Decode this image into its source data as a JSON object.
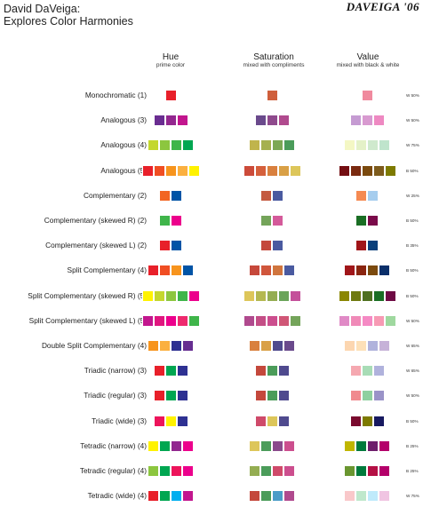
{
  "title_line1": "David DaVeiga:",
  "title_line2": "Explores Color Harmonies",
  "logo": "DAVEIGA '06",
  "columns": [
    {
      "heading": "Hue",
      "sub": "prime color"
    },
    {
      "heading": "Saturation",
      "sub": "mixed with compliments"
    },
    {
      "heading": "Value",
      "sub": "mixed with black & white"
    }
  ],
  "rows": [
    {
      "label": "Monochromatic (1)",
      "note": "W 50%",
      "hue": [
        "#e8202a"
      ],
      "sat": [
        "#cf5f3c"
      ],
      "val": [
        "#f08a9e"
      ]
    },
    {
      "label": "Analogous (3)",
      "note": "W 50%",
      "hue": [
        "#6a2d91",
        "#93278f",
        "#c2168e"
      ],
      "sat": [
        "#6a4a8c",
        "#8f4a8d",
        "#b04a8e"
      ],
      "val": [
        "#c59bd2",
        "#d89ad0",
        "#ee89c2"
      ]
    },
    {
      "label": "Analogous (4)",
      "note": "W 75%",
      "hue": [
        "#c4d72e",
        "#8cc63f",
        "#3fb54a",
        "#00a651"
      ],
      "sat": [
        "#c0b44c",
        "#a5b050",
        "#7ca855",
        "#4b9c5a"
      ],
      "val": [
        "#f4f7c4",
        "#e4f1c8",
        "#cfe9cd",
        "#bfe4cc"
      ]
    },
    {
      "label": "Analogous (5)",
      "note": "B 50%",
      "hue": [
        "#e8202a",
        "#f04e23",
        "#f7941d",
        "#fbb040",
        "#fff200"
      ],
      "sat": [
        "#cc4b3a",
        "#d5603c",
        "#d9803e",
        "#d9a046",
        "#ddc65a"
      ],
      "val": [
        "#740e12",
        "#7a2a10",
        "#7b4a0e",
        "#7d5b1c",
        "#7d7a00"
      ]
    },
    {
      "label": "Complementary (2)",
      "note": "W 25%",
      "hue": [
        "#f26522",
        "#0054a6"
      ],
      "sat": [
        "#c45a40",
        "#4a5aa0"
      ],
      "val": [
        "#f58a52",
        "#a6cdee"
      ]
    },
    {
      "label": "Complementary (skewed R) (2)",
      "note": "B 50%",
      "hue": [
        "#3fb54a",
        "#ec008c"
      ],
      "sat": [
        "#74a45a",
        "#d45a9a"
      ],
      "val": [
        "#1a6e24",
        "#7a0a4a"
      ]
    },
    {
      "label": "Complementary (skewed L) (2)",
      "note": "B 35%",
      "hue": [
        "#e8202a",
        "#0054a6"
      ],
      "sat": [
        "#c4483c",
        "#4a5aa0"
      ],
      "val": [
        "#a01418",
        "#0a3f7a"
      ]
    },
    {
      "label": "Split Complementary (4)",
      "note": "B 50%",
      "hue": [
        "#e8202a",
        "#f04e23",
        "#f7941d",
        "#0054a6"
      ],
      "sat": [
        "#c6483b",
        "#d0563c",
        "#d0753e",
        "#4a5aa0"
      ],
      "val": [
        "#a0161a",
        "#8a2510",
        "#7b4a0e",
        "#0a2f6a"
      ]
    },
    {
      "label": "Split Complementary (skewed R) (5)",
      "note": "B 50%",
      "hue": [
        "#fff200",
        "#c4d72e",
        "#8cc63f",
        "#3fb54a",
        "#ec008c"
      ],
      "sat": [
        "#ddc65a",
        "#b4b850",
        "#94ad52",
        "#6aa45a",
        "#c4509a"
      ],
      "val": [
        "#8a8600",
        "#6f7a10",
        "#4f7020",
        "#1a6e24",
        "#6e0a44"
      ]
    },
    {
      "label": "Split Complementary (skewed L) (5)",
      "note": "W 50%",
      "hue": [
        "#c2168e",
        "#e0167f",
        "#ec008c",
        "#ee2a6e",
        "#3fb54a"
      ],
      "sat": [
        "#b04a8e",
        "#c44e86",
        "#cc4e8e",
        "#d05676",
        "#74a45a"
      ],
      "val": [
        "#e08ac6",
        "#f08ab8",
        "#f58ac4",
        "#f79ab4",
        "#9fd89f"
      ]
    },
    {
      "label": "Double Split Complementary (4)",
      "note": "W 65%",
      "hue": [
        "#f7941d",
        "#fbb040",
        "#2e3192",
        "#662d91"
      ],
      "sat": [
        "#d9803e",
        "#d9a046",
        "#4f4a8e",
        "#6a4a8c"
      ],
      "val": [
        "#fcd6b0",
        "#fde0b8",
        "#b0b2dc",
        "#c6b2d8"
      ]
    },
    {
      "label": "Triadic (narrow) (3)",
      "note": "W 65%",
      "hue": [
        "#e8202a",
        "#00a651",
        "#2e3192"
      ],
      "sat": [
        "#c4483c",
        "#4b9c5a",
        "#4f4a8e"
      ],
      "val": [
        "#f5a8b0",
        "#a8dcb6",
        "#b0b2dc"
      ]
    },
    {
      "label": "Triadic (regular) (3)",
      "note": "W 50%",
      "hue": [
        "#e8202a",
        "#00a651",
        "#2e3192"
      ],
      "sat": [
        "#c4483c",
        "#4b9c5a",
        "#4f4a8e"
      ],
      "val": [
        "#f08a8e",
        "#8fd09f",
        "#9a93c8"
      ]
    },
    {
      "label": "Triadic (wide) (3)",
      "note": "B 50%",
      "hue": [
        "#ed145b",
        "#fff200",
        "#2e3192"
      ],
      "sat": [
        "#cf4a6a",
        "#ddc65a",
        "#4f4a8e"
      ],
      "val": [
        "#7a0a2e",
        "#7d7a00",
        "#171960"
      ]
    },
    {
      "label": "Tetradic (narrow) (4)",
      "note": "B 25%",
      "hue": [
        "#fff200",
        "#00a651",
        "#92278f",
        "#ec008c"
      ],
      "sat": [
        "#ddc65a",
        "#4b9c5a",
        "#8a4a8c",
        "#cc4e8e"
      ],
      "val": [
        "#c0b600",
        "#007a3c",
        "#6e1e6c",
        "#b4006a"
      ]
    },
    {
      "label": "Tetradic (regular) (4)",
      "note": "B 25%",
      "hue": [
        "#8cc63f",
        "#00a651",
        "#ed145b",
        "#ec008c"
      ],
      "sat": [
        "#94ad52",
        "#4b9c5a",
        "#cf4a6a",
        "#cc4e8e"
      ],
      "val": [
        "#6a9630",
        "#007a3c",
        "#b40f44",
        "#b4006a"
      ]
    },
    {
      "label": "Tetradic (wide) (4)",
      "note": "W 75%",
      "hue": [
        "#e8202a",
        "#00a651",
        "#00aeef",
        "#c2168e"
      ],
      "sat": [
        "#c4483c",
        "#4b9c5a",
        "#4a9cc8",
        "#b04a8e"
      ],
      "val": [
        "#f9c8ca",
        "#bfe8cc",
        "#bfeafb",
        "#f0c4e2"
      ]
    }
  ]
}
